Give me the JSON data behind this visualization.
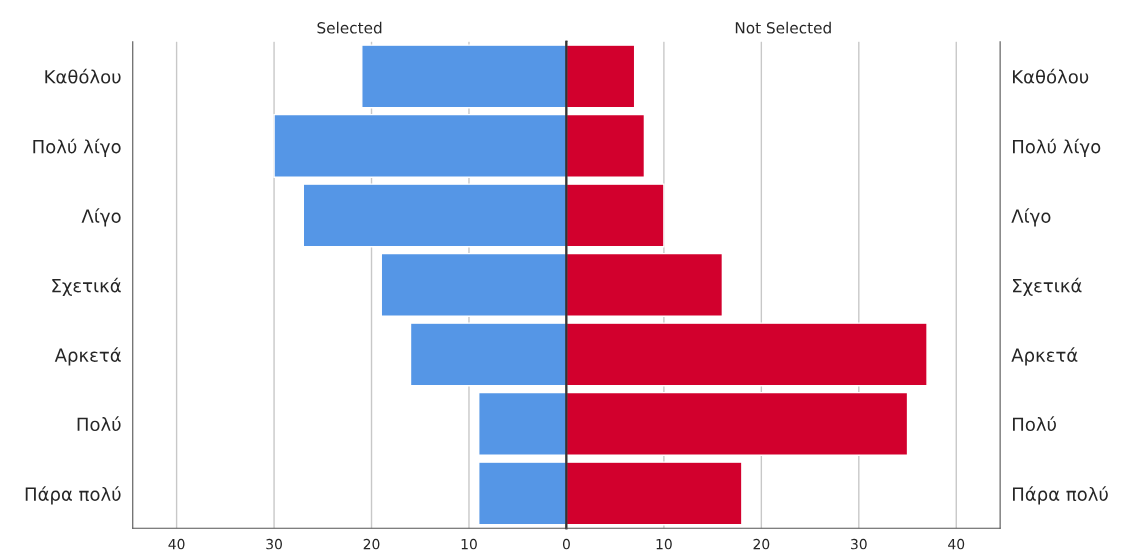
{
  "chart_data": [
    {
      "type": "bar",
      "orientation": "horizontal",
      "title": "Selected",
      "categories": [
        "Καθόλου",
        "Πολύ λίγο",
        "Λίγο",
        "Σχετικά",
        "Αρκετά",
        "Πολύ",
        "Πάρα πολύ"
      ],
      "values": [
        21,
        30,
        27,
        19,
        16,
        9,
        9
      ],
      "color": "#5596e6",
      "xlim": [
        44.5,
        0
      ],
      "xticks": [
        40,
        30,
        20,
        10
      ],
      "grid": "x"
    },
    {
      "type": "bar",
      "orientation": "horizontal",
      "title": "Not Selected",
      "categories": [
        "Καθόλου",
        "Πολύ λίγο",
        "Λίγο",
        "Σχετικά",
        "Αρκετά",
        "Πολύ",
        "Πάρα πολύ"
      ],
      "values": [
        7,
        8,
        10,
        16,
        37,
        35,
        18
      ],
      "color": "#d2002d",
      "xlim": [
        0,
        44.5
      ],
      "xticks": [
        0,
        10,
        20,
        30,
        40
      ],
      "grid": "x"
    }
  ]
}
